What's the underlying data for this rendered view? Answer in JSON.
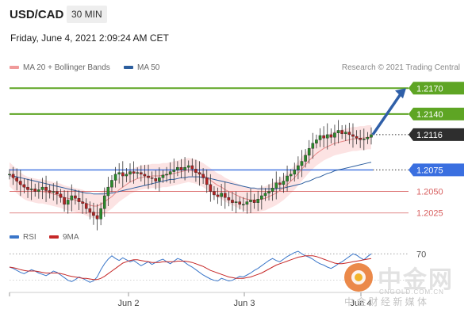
{
  "header": {
    "symbol": "USD/CAD",
    "timeframe": "30 MIN",
    "timestamp": "Friday, June 4, 2021 2:09:24 AM CET"
  },
  "legend": {
    "ma20_label": "MA 20 + Bollinger Bands",
    "ma50_label": "MA 50",
    "rsi_label": "RSI",
    "rsi_ma_label": "9MA"
  },
  "credit": "Research © 2021 Trading Central",
  "watermark": {
    "brand": "中金网",
    "url": "CNGOLD.COM.CN",
    "sub": "中 金 财 经 新 媒 体"
  },
  "colors": {
    "green_level": "#5ea524",
    "blue_level": "#3a6fe0",
    "red_level": "#d86060",
    "dark_label": "#2e2e2e",
    "ma20": "#e88a8a",
    "bollinger_fill": "#fbdede",
    "ma50": "#2c5e9e",
    "arrow": "#2f5fa8",
    "candle_up": "#2a8a2a",
    "candle_down": "#b32222",
    "rsi": "#3a76c9",
    "rsi_ma": "#c62828"
  },
  "chart_data": {
    "type": "candlestick",
    "title": "USD/CAD 30 MIN",
    "x_ticks": [
      "Jun 2",
      "Jun 3",
      "Jun 4"
    ],
    "levels": [
      {
        "value": 1.217,
        "label": "1.2170",
        "kind": "resistance",
        "color": "green"
      },
      {
        "value": 1.214,
        "label": "1.2140",
        "kind": "resistance",
        "color": "green"
      },
      {
        "value": 1.2116,
        "label": "1.2116",
        "kind": "last_price",
        "color": "dark"
      },
      {
        "value": 1.2075,
        "label": "1.2075",
        "kind": "pivot",
        "color": "blue"
      },
      {
        "value": 1.205,
        "label": "1.2050",
        "kind": "support",
        "color": "red"
      },
      {
        "value": 1.2025,
        "label": "1.2025",
        "kind": "support",
        "color": "red"
      }
    ],
    "ylim": [
      1.201,
      1.2185
    ],
    "price_path": [
      1.207,
      1.2066,
      1.2062,
      1.2058,
      1.2055,
      1.2052,
      1.2053,
      1.205,
      1.2052,
      1.2055,
      1.2051,
      1.2049,
      1.205,
      1.2047,
      1.2043,
      1.2035,
      1.204,
      1.2045,
      1.2042,
      1.2038,
      1.2036,
      1.203,
      1.2026,
      1.2022,
      1.2018,
      1.203,
      1.2045,
      1.2055,
      1.2063,
      1.207,
      1.2072,
      1.2068,
      1.207,
      1.2073,
      1.2071,
      1.2072,
      1.207,
      1.2068,
      1.2066,
      1.2065,
      1.2062,
      1.2066,
      1.2069,
      1.207,
      1.2073,
      1.2075,
      1.2078,
      1.2075,
      1.2078,
      1.208,
      1.2076,
      1.2072,
      1.207,
      1.2066,
      1.2058,
      1.205,
      1.2046,
      1.2044,
      1.2048,
      1.2043,
      1.204,
      1.2037,
      1.2038,
      1.2035,
      1.2035,
      1.2038,
      1.204,
      1.2037,
      1.2041,
      1.2045,
      1.2048,
      1.205,
      1.2054,
      1.206,
      1.2058,
      1.2062,
      1.2068,
      1.207,
      1.2075,
      1.208,
      1.2085,
      1.2092,
      1.21,
      1.2106,
      1.211,
      1.2115,
      1.2112,
      1.2116,
      1.2113,
      1.2118,
      1.2121,
      1.2117,
      1.2119,
      1.2116,
      1.2114,
      1.2112,
      1.211,
      1.2111,
      1.2113,
      1.2116
    ],
    "projection": {
      "from": 1.2116,
      "to": 1.217
    },
    "ma20_path": [
      1.207,
      1.2066,
      1.2062,
      1.2058,
      1.2055,
      1.2053,
      1.2052,
      1.2051,
      1.205,
      1.205,
      1.2049,
      1.2048,
      1.2047,
      1.2046,
      1.2045,
      1.2043,
      1.2042,
      1.2041,
      1.204,
      1.2039,
      1.2038,
      1.2036,
      1.2034,
      1.2033,
      1.2033,
      1.2035,
      1.2038,
      1.2041,
      1.2044,
      1.2048,
      1.2052,
      1.2055,
      1.2058,
      1.2061,
      1.2063,
      1.2065,
      1.2066,
      1.2067,
      1.2067,
      1.2068,
      1.2068,
      1.2068,
      1.2069,
      1.2069,
      1.207,
      1.2071,
      1.2072,
      1.2073,
      1.2074,
      1.2075,
      1.2074,
      1.2073,
      1.2071,
      1.2069,
      1.2066,
      1.2063,
      1.206,
      1.2057,
      1.2055,
      1.2052,
      1.205,
      1.2048,
      1.2046,
      1.2044,
      1.2042,
      1.2041,
      1.204,
      1.204,
      1.204,
      1.2041,
      1.2042,
      1.2044,
      1.2046,
      1.2048,
      1.2051,
      1.2054,
      1.2058,
      1.2062,
      1.2066,
      1.2071,
      1.2076,
      1.2081,
      1.2086,
      1.209,
      1.2094,
      1.2097,
      1.21,
      1.2102,
      1.2104,
      1.2106,
      1.2107,
      1.2108,
      1.2109,
      1.211,
      1.2111,
      1.2111,
      1.2112,
      1.2112,
      1.2113,
      1.2113
    ],
    "ma50_path": [
      1.2068,
      1.2068,
      1.2067,
      1.2066,
      1.2065,
      1.2064,
      1.2063,
      1.2062,
      1.2061,
      1.206,
      1.2059,
      1.2058,
      1.2057,
      1.2056,
      1.2055,
      1.2054,
      1.2053,
      1.2052,
      1.2051,
      1.205,
      1.2049,
      1.2048,
      1.2048,
      1.2047,
      1.2047,
      1.2047,
      1.2047,
      1.2048,
      1.2048,
      1.2049,
      1.205,
      1.2051,
      1.2052,
      1.2053,
      1.2054,
      1.2055,
      1.2056,
      1.2057,
      1.2058,
      1.2059,
      1.206,
      1.2061,
      1.2062,
      1.2063,
      1.2064,
      1.2064,
      1.2065,
      1.2066,
      1.2066,
      1.2067,
      1.2067,
      1.2067,
      1.2067,
      1.2066,
      1.2066,
      1.2065,
      1.2064,
      1.2063,
      1.2062,
      1.2061,
      1.206,
      1.2059,
      1.2058,
      1.2057,
      1.2056,
      1.2055,
      1.2054,
      1.2054,
      1.2053,
      1.2053,
      1.2053,
      1.2053,
      1.2053,
      1.2053,
      1.2054,
      1.2054,
      1.2055,
      1.2056,
      1.2057,
      1.2058,
      1.2059,
      1.2061,
      1.2062,
      1.2064,
      1.2066,
      1.2067,
      1.2069,
      1.2071,
      1.2072,
      1.2074,
      1.2075,
      1.2076,
      1.2077,
      1.2078,
      1.2079,
      1.208,
      1.2081,
      1.2082,
      1.2083,
      1.2084
    ],
    "band_width": 0.0014,
    "rsi": {
      "levels": [
        70
      ],
      "ylim": [
        20,
        80
      ],
      "values": [
        50,
        48,
        45,
        42,
        40,
        43,
        46,
        44,
        41,
        39,
        37,
        40,
        44,
        42,
        38,
        34,
        30,
        28,
        31,
        35,
        33,
        30,
        27,
        29,
        35,
        46,
        55,
        62,
        67,
        63,
        60,
        64,
        61,
        58,
        60,
        56,
        52,
        55,
        58,
        54,
        57,
        60,
        62,
        58,
        55,
        59,
        63,
        61,
        57,
        53,
        50,
        46,
        42,
        38,
        35,
        32,
        30,
        29,
        33,
        31,
        29,
        30,
        33,
        36,
        35,
        38,
        41,
        45,
        48,
        52,
        56,
        60,
        63,
        60,
        58,
        62,
        66,
        69,
        72,
        74,
        70,
        67,
        65,
        62,
        58,
        55,
        53,
        50,
        48,
        51,
        55,
        58,
        62,
        66,
        70,
        68,
        64,
        61,
        66,
        70
      ],
      "ma": [
        50,
        49,
        48,
        46,
        45,
        44,
        44,
        44,
        43,
        42,
        41,
        41,
        41,
        41,
        40,
        39,
        37,
        36,
        35,
        34,
        33,
        33,
        32,
        31,
        31,
        33,
        36,
        40,
        44,
        48,
        52,
        56,
        58,
        60,
        61,
        61,
        60,
        59,
        58,
        57,
        57,
        57,
        58,
        58,
        58,
        58,
        59,
        59,
        59,
        58,
        57,
        55,
        53,
        51,
        48,
        45,
        43,
        41,
        39,
        37,
        35,
        34,
        33,
        33,
        33,
        34,
        35,
        37,
        39,
        41,
        44,
        47,
        50,
        53,
        55,
        57,
        59,
        61,
        63,
        65,
        66,
        67,
        67,
        67,
        66,
        64,
        62,
        60,
        58,
        56,
        55,
        55,
        56,
        57,
        58,
        59,
        60,
        61,
        62,
        63
      ]
    }
  }
}
